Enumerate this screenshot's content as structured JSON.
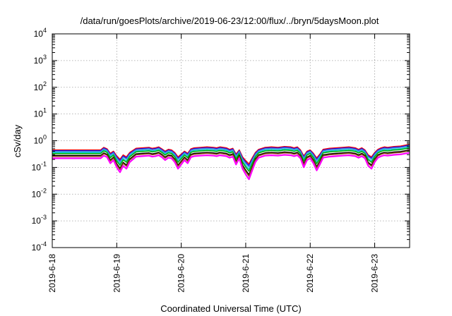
{
  "chart_data": {
    "type": "line",
    "title": "/data/run/goesPlots/archive/2019-06-23/12:00/flux/../bryn/5daysMoon.plot",
    "xlabel": "Coordinated Universal Time (UTC)",
    "ylabel": "cSv/day",
    "yscale": "log",
    "ylim": [
      0.0001,
      10000
    ],
    "xlim": [
      "2019-06-18",
      "2019-06-23T13:00"
    ],
    "grid": true,
    "y_ticks": [
      {
        "value": 0.0001,
        "base": "10",
        "exp": "-4"
      },
      {
        "value": 0.001,
        "base": "10",
        "exp": "-3"
      },
      {
        "value": 0.01,
        "base": "10",
        "exp": "-2"
      },
      {
        "value": 0.1,
        "base": "10",
        "exp": "-1"
      },
      {
        "value": 1,
        "base": "10",
        "exp": "0"
      },
      {
        "value": 10,
        "base": "10",
        "exp": "1"
      },
      {
        "value": 100,
        "base": "10",
        "exp": "2"
      },
      {
        "value": 1000,
        "base": "10",
        "exp": "3"
      },
      {
        "value": 10000,
        "base": "10",
        "exp": "4"
      }
    ],
    "x_ticks": [
      "2019-6-18",
      "2019-6-19",
      "2019-6-20",
      "2019-6-21",
      "2019-6-22",
      "2019-6-23"
    ],
    "x_tick_dates": [
      "2019-06-18",
      "2019-06-19",
      "2019-06-20",
      "2019-06-21",
      "2019-06-22",
      "2019-06-23"
    ],
    "shape_days": [
      0,
      0.75,
      0.8,
      0.85,
      0.9,
      0.95,
      1.0,
      1.05,
      1.1,
      1.15,
      1.2,
      1.3,
      1.4,
      1.5,
      1.55,
      1.6,
      1.65,
      1.7,
      1.75,
      1.8,
      1.85,
      1.9,
      1.95,
      2.0,
      2.05,
      2.1,
      2.15,
      2.2,
      2.3,
      2.4,
      2.5,
      2.55,
      2.6,
      2.7,
      2.75,
      2.8,
      2.85,
      2.9,
      2.95,
      3.0,
      3.05,
      3.1,
      3.15,
      3.2,
      3.3,
      3.4,
      3.5,
      3.6,
      3.7,
      3.75,
      3.8,
      3.85,
      3.9,
      3.95,
      4.0,
      4.05,
      4.1,
      4.15,
      4.2,
      4.3,
      4.4,
      4.5,
      4.6,
      4.7,
      4.75,
      4.8,
      4.85,
      4.9,
      4.95,
      5.0,
      5.05,
      5.1,
      5.15,
      5.2,
      5.3,
      5.4,
      5.5,
      5.54
    ],
    "shape_factors": [
      1.0,
      1.0,
      1.25,
      1.1,
      0.75,
      0.9,
      0.6,
      0.45,
      0.65,
      0.55,
      0.8,
      1.15,
      1.2,
      1.25,
      1.15,
      1.2,
      1.3,
      1.1,
      0.9,
      1.05,
      1.0,
      0.8,
      0.55,
      0.7,
      0.9,
      0.75,
      1.1,
      1.2,
      1.25,
      1.3,
      1.25,
      1.2,
      1.3,
      1.2,
      1.05,
      1.15,
      0.7,
      1.0,
      0.55,
      0.4,
      0.3,
      0.5,
      0.8,
      1.05,
      1.25,
      1.3,
      1.25,
      1.35,
      1.3,
      1.2,
      1.3,
      1.0,
      0.6,
      0.9,
      1.0,
      0.75,
      0.5,
      0.7,
      1.05,
      1.15,
      1.2,
      1.25,
      1.3,
      1.2,
      1.05,
      1.2,
      1.0,
      0.65,
      0.55,
      0.8,
      1.05,
      1.2,
      1.3,
      1.25,
      1.35,
      1.4,
      1.55,
      1.6
    ],
    "series": [
      {
        "color": "#ff0000",
        "base": 0.45
      },
      {
        "color": "#0000ff",
        "base": 0.42
      },
      {
        "color": "#00cccc",
        "base": 0.36
      },
      {
        "color": "#00b000",
        "base": 0.33
      },
      {
        "color": "#000000",
        "base": 0.28
      },
      {
        "color": "#8b4513",
        "base": 0.26
      },
      {
        "color": "#ff00ff",
        "base": 0.22
      },
      {
        "color": "#4a7fd8",
        "base": 0.4
      }
    ]
  }
}
